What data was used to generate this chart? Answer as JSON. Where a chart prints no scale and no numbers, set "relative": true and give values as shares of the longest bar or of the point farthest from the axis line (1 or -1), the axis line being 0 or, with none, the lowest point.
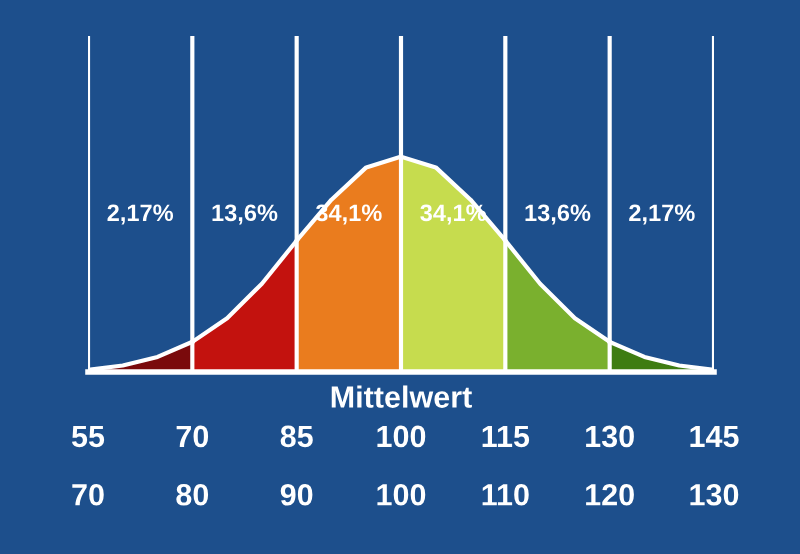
{
  "chart_data": {
    "type": "area",
    "relative": true,
    "xlabel": "Mittelwert",
    "xlim": [
      55,
      145
    ],
    "xticks": [
      55,
      70,
      85,
      100,
      115,
      130,
      145
    ],
    "x2lim": [
      70,
      130
    ],
    "x2ticks": [
      70,
      80,
      90,
      100,
      110,
      120,
      130
    ],
    "grid": "x",
    "series": [
      {
        "color": "#7a0a0c",
        "x": [
          55,
          60,
          65,
          70
        ],
        "values": [
          0.01,
          0.03,
          0.07,
          0.14
        ]
      },
      {
        "color": "#c3120e",
        "x": [
          70,
          75,
          80,
          85
        ],
        "values": [
          0.14,
          0.25,
          0.41,
          0.61
        ]
      },
      {
        "color": "#ea7c1e",
        "x": [
          85,
          90,
          95,
          100
        ],
        "values": [
          0.61,
          0.8,
          0.95,
          1.0
        ]
      },
      {
        "color": "#c6dc4e",
        "x": [
          100,
          105,
          110,
          115
        ],
        "values": [
          1.0,
          0.95,
          0.8,
          0.61
        ]
      },
      {
        "color": "#7ab02e",
        "x": [
          115,
          120,
          125,
          130
        ],
        "values": [
          0.61,
          0.41,
          0.25,
          0.14
        ]
      },
      {
        "color": "#3e7c12",
        "x": [
          130,
          135,
          140,
          145
        ],
        "values": [
          0.14,
          0.07,
          0.03,
          0.01
        ]
      }
    ],
    "annotations": [
      "2,17%",
      "13,6%",
      "34,1%",
      "34,1%",
      "13,6%",
      "2,17%"
    ]
  }
}
